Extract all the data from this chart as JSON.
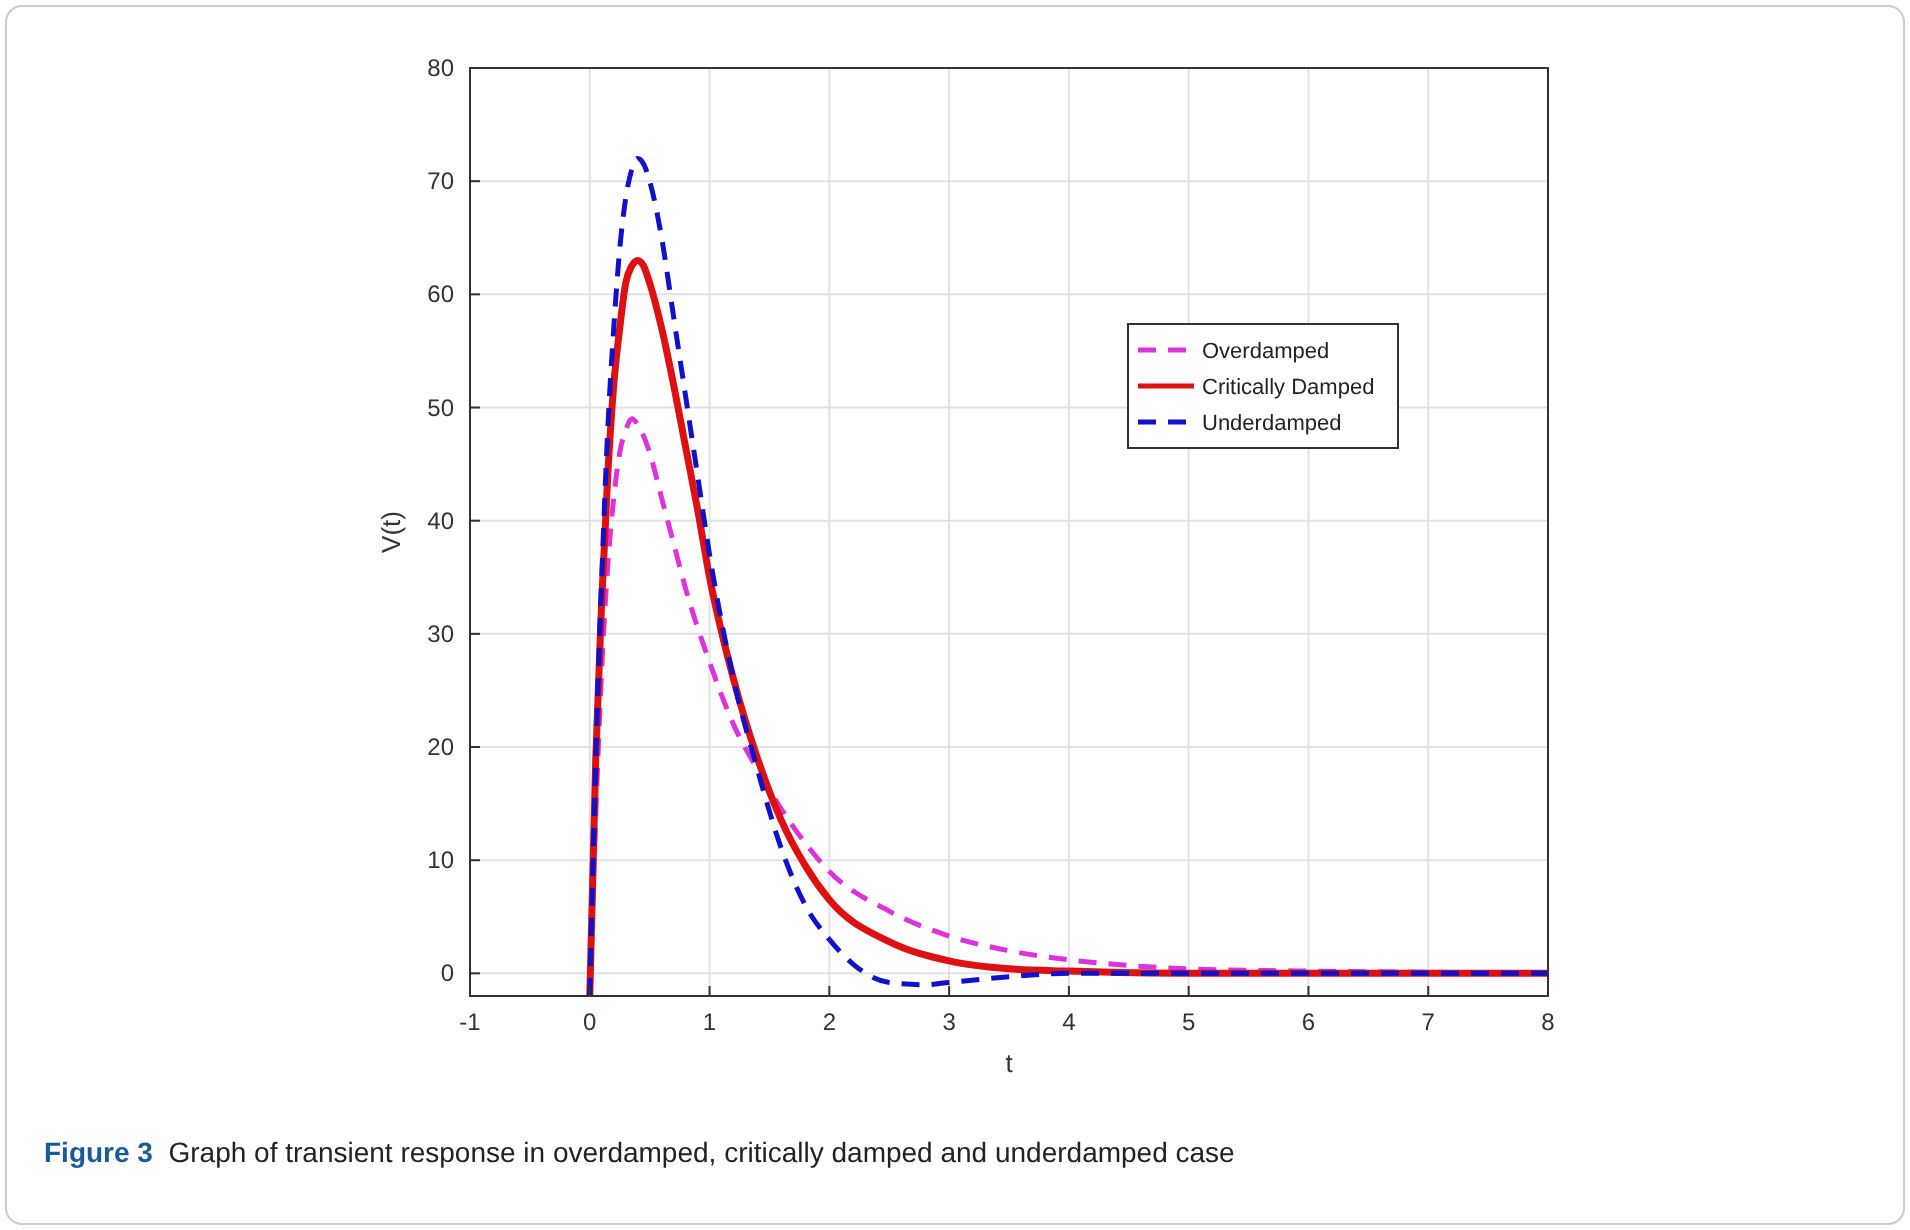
{
  "chart_data": {
    "type": "line",
    "xlabel": "t",
    "ylabel": "V(t)",
    "xlim": [
      -1,
      8
    ],
    "ylim": [
      -2,
      80
    ],
    "xticks": [
      -1,
      0,
      1,
      2,
      3,
      4,
      5,
      6,
      7,
      8
    ],
    "yticks": [
      0,
      10,
      20,
      30,
      40,
      50,
      60,
      70,
      80
    ],
    "grid": true,
    "legend": "top right",
    "annotations": [
      "Figure 3  Graph of transient response in overdamped, critically damped and underdamped case"
    ],
    "series": [
      {
        "name": "Overdamped",
        "color": "#dd33dd",
        "line_style": "dashed",
        "x": [
          0,
          0.05,
          0.1,
          0.15,
          0.2,
          0.25,
          0.3,
          0.35,
          0.4,
          0.5,
          0.6,
          0.7,
          0.8,
          1,
          1.2,
          1.4,
          1.6,
          1.8,
          2,
          2.5,
          3,
          3.5,
          4,
          4.5,
          5,
          6,
          7,
          8
        ],
        "values": [
          -2,
          14,
          27,
          36,
          42,
          46,
          48,
          49,
          48.5,
          46,
          42,
          38,
          34,
          27.5,
          22,
          18,
          14.5,
          11.5,
          9,
          5.5,
          3.3,
          2,
          1.2,
          0.7,
          0.4,
          0.2,
          0.1,
          0
        ]
      },
      {
        "name": "Critically Damped",
        "color": "#dd1111",
        "line_style": "solid",
        "x": [
          0,
          0.05,
          0.1,
          0.15,
          0.2,
          0.25,
          0.3,
          0.35,
          0.4,
          0.45,
          0.5,
          0.6,
          0.7,
          0.8,
          0.9,
          1,
          1.2,
          1.4,
          1.6,
          1.8,
          2,
          2.5,
          3,
          3.5,
          4,
          5,
          6,
          7,
          8
        ],
        "values": [
          -2,
          19,
          33,
          44,
          52,
          57,
          61,
          62.5,
          63,
          62.5,
          61,
          57,
          52,
          46.5,
          41,
          35,
          26,
          19,
          13.5,
          9.5,
          6.5,
          2.8,
          1.1,
          0.4,
          0.2,
          0,
          0,
          0,
          0
        ]
      },
      {
        "name": "Underdamped",
        "color": "#1111cc",
        "line_style": "dashed",
        "x": [
          0,
          0.05,
          0.1,
          0.15,
          0.2,
          0.25,
          0.3,
          0.35,
          0.4,
          0.45,
          0.5,
          0.6,
          0.7,
          0.8,
          0.9,
          1,
          1.2,
          1.4,
          1.6,
          1.8,
          2,
          2.2,
          2.5,
          2.8,
          3,
          3.5,
          4,
          5,
          6,
          7,
          8
        ],
        "values": [
          -2,
          19,
          35,
          48,
          57,
          64,
          68.5,
          71,
          72,
          71.5,
          70,
          65,
          58,
          51,
          44,
          37,
          26,
          18,
          11,
          6,
          3,
          0.8,
          -0.8,
          -1,
          -0.8,
          -0.3,
          0,
          0,
          0,
          0,
          0
        ]
      }
    ]
  }
}
